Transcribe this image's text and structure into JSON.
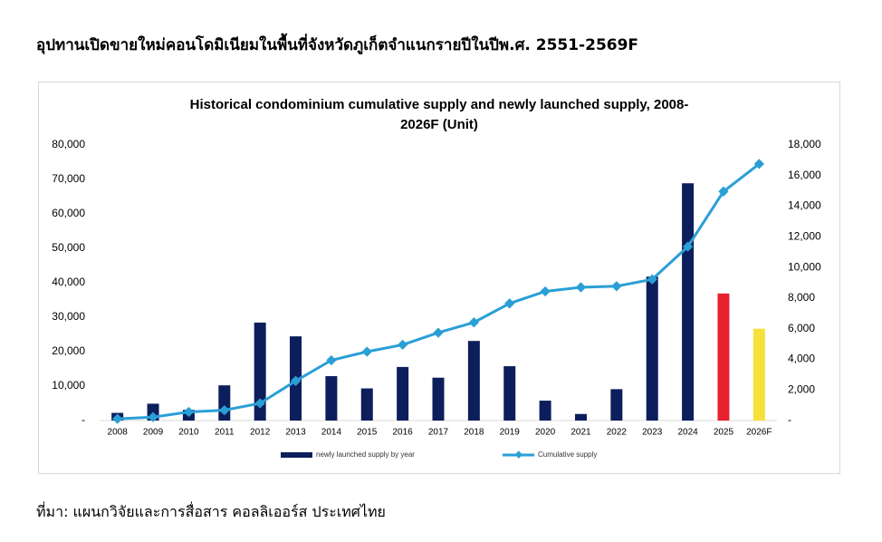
{
  "heading": "อุปทานเปิดขายใหม่คอนโดมิเนียมในพื้นที่จังหวัดภูเก็ตจำแนกรายปีในปีพ.ศ. 2551-2569F",
  "source": "ที่มา: แผนกวิจัยและการสื่อสาร คอลลิเออร์ส ประเทศไทย",
  "chart_data": {
    "type": "bar-line",
    "title_lines": [
      "Historical  condominium cumulative supply and newly launched supply, 2008-",
      "2026F (Unit)"
    ],
    "categories": [
      "2008",
      "2009",
      "2010",
      "2011",
      "2012",
      "2013",
      "2014",
      "2015",
      "2016",
      "2017",
      "2018",
      "2019",
      "2020",
      "2021",
      "2022",
      "2023",
      "2024",
      "2025",
      "2026F"
    ],
    "series": [
      {
        "name": "newly launched supply by year",
        "type": "bar",
        "axis": "y2",
        "color": "#0c1e5b",
        "colors": [
          "#0c1e5b",
          "#0c1e5b",
          "#0c1e5b",
          "#0c1e5b",
          "#0c1e5b",
          "#0c1e5b",
          "#0c1e5b",
          "#0c1e5b",
          "#0c1e5b",
          "#0c1e5b",
          "#0c1e5b",
          "#0c1e5b",
          "#0c1e5b",
          "#0c1e5b",
          "#0c1e5b",
          "#0c1e5b",
          "#0c1e5b",
          "#e8212f",
          "#f6e03a"
        ],
        "values": [
          500,
          1100,
          700,
          2300,
          6400,
          5500,
          2900,
          2100,
          3500,
          2800,
          5200,
          3550,
          1300,
          430,
          2050,
          9400,
          15500,
          8300,
          6000
        ]
      },
      {
        "name": "Cumulative supply",
        "type": "line",
        "axis": "y",
        "color": "#2a9fd6",
        "values": [
          500,
          1000,
          2500,
          3000,
          5000,
          11500,
          17500,
          20000,
          22000,
          25500,
          28500,
          34000,
          37500,
          38700,
          39000,
          41000,
          50500,
          66500,
          74500
        ]
      }
    ],
    "ylim": [
      0,
      80000
    ],
    "yticks": [
      {
        "value": 0,
        "label": "-"
      },
      {
        "value": 10000,
        "label": "10,000"
      },
      {
        "value": 20000,
        "label": "20,000"
      },
      {
        "value": 30000,
        "label": "30,000"
      },
      {
        "value": 40000,
        "label": "40,000"
      },
      {
        "value": 50000,
        "label": "50,000"
      },
      {
        "value": 60000,
        "label": "60,000"
      },
      {
        "value": 70000,
        "label": "70,000"
      },
      {
        "value": 80000,
        "label": "80,000"
      }
    ],
    "y2lim": [
      0,
      18000
    ],
    "y2ticks": [
      {
        "value": 0,
        "label": "-"
      },
      {
        "value": 2000,
        "label": "2,000"
      },
      {
        "value": 4000,
        "label": "4,000"
      },
      {
        "value": 6000,
        "label": "6,000"
      },
      {
        "value": 8000,
        "label": "8,000"
      },
      {
        "value": 10000,
        "label": "10,000"
      },
      {
        "value": 12000,
        "label": "12,000"
      },
      {
        "value": 14000,
        "label": "14,000"
      },
      {
        "value": 16000,
        "label": "16,000"
      },
      {
        "value": 18000,
        "label": "18,000"
      }
    ],
    "legend": "bottom"
  }
}
